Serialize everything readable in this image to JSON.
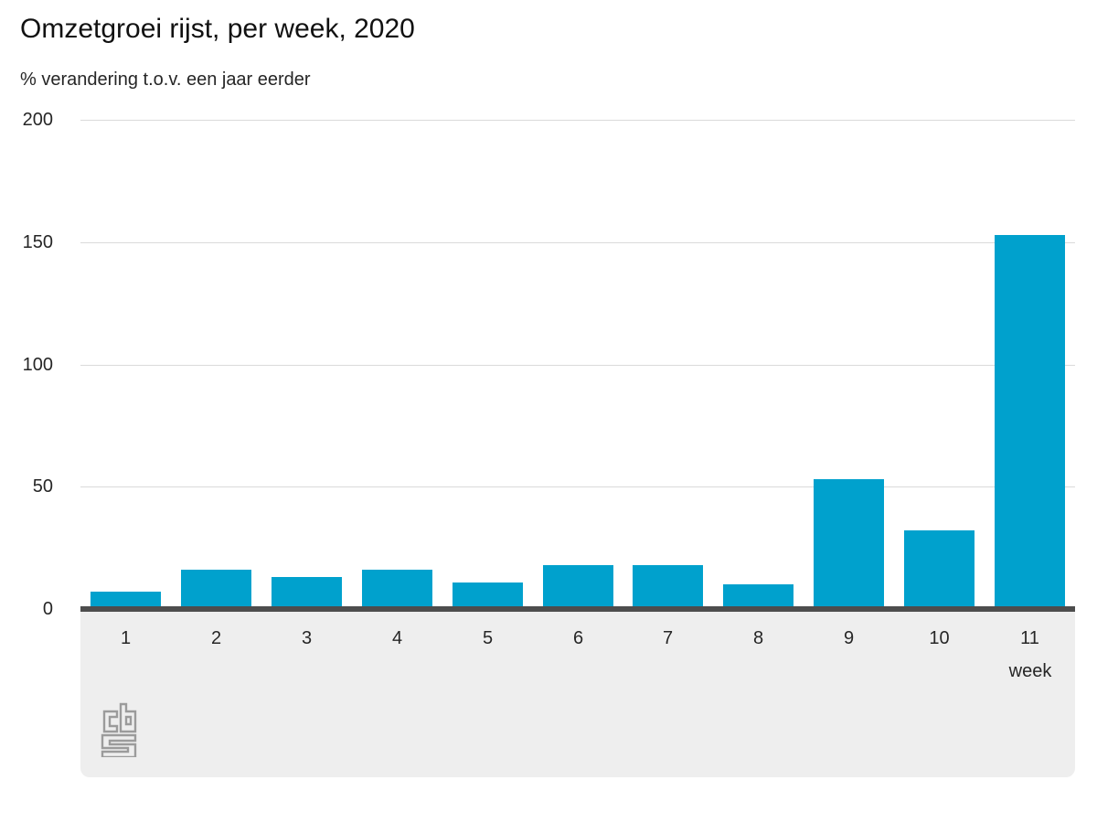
{
  "chart_data": {
    "type": "bar",
    "title": "Omzetgroei rijst, per week, 2020",
    "subtitle": "% verandering t.o.v. een jaar eerder",
    "categories": [
      "1",
      "2",
      "3",
      "4",
      "5",
      "6",
      "7",
      "8",
      "9",
      "10",
      "11"
    ],
    "values": [
      7,
      16,
      13,
      16,
      11,
      18,
      18,
      10,
      53,
      32,
      153
    ],
    "xlabel": "week",
    "ylabel": "",
    "ylim": [
      0,
      200
    ],
    "yticks": [
      0,
      50,
      100,
      150,
      200
    ],
    "grid": true,
    "legend_position": "none",
    "colors": {
      "bar": "#00a1cd",
      "grid_line": "#dadada",
      "axis_line": "#4d4d4d",
      "band_background": "#eeeeee",
      "text": "#262626",
      "title_text": "#111111",
      "logo": "#9b9b9b"
    },
    "footer_logo": "cbs-logo"
  }
}
